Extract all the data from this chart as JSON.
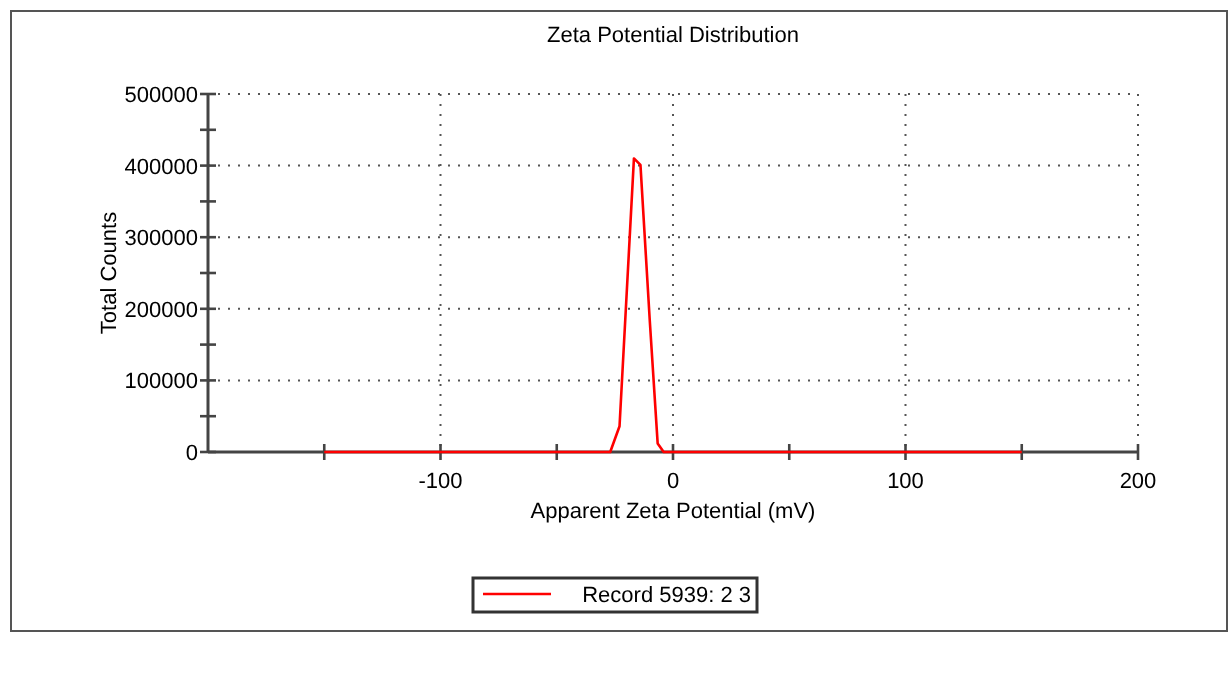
{
  "chart_data": {
    "type": "line",
    "title": "Zeta Potential Distribution",
    "xlabel": "Apparent Zeta Potential (mV)",
    "ylabel": "Total Counts",
    "xlim": [
      -200,
      200
    ],
    "xticks": [
      {
        "value": -150,
        "label": null
      },
      -100,
      {
        "value": -50,
        "label": null
      },
      0,
      {
        "value": 50,
        "label": null
      },
      100,
      {
        "value": 150,
        "label": null
      },
      200
    ],
    "ylim": [
      0,
      500000
    ],
    "yticks": [
      0,
      {
        "value": 50000,
        "label": null
      },
      100000,
      {
        "value": 150000,
        "label": null
      },
      200000,
      {
        "value": 250000,
        "label": null
      },
      300000,
      {
        "value": 350000,
        "label": null
      },
      400000,
      {
        "value": 450000,
        "label": null
      },
      500000
    ],
    "grid": true,
    "legend": "bottom",
    "marker": "none",
    "line_style": "solid",
    "series": [
      {
        "name": "Record 5939: 2 3",
        "color": "#ff0000",
        "x": [
          -150,
          -27,
          -23,
          -16.8,
          -14,
          -10,
          -6.6,
          -4,
          150
        ],
        "values": [
          0,
          0,
          36000,
          410000,
          401000,
          184000,
          12000,
          0,
          0
        ]
      }
    ]
  }
}
